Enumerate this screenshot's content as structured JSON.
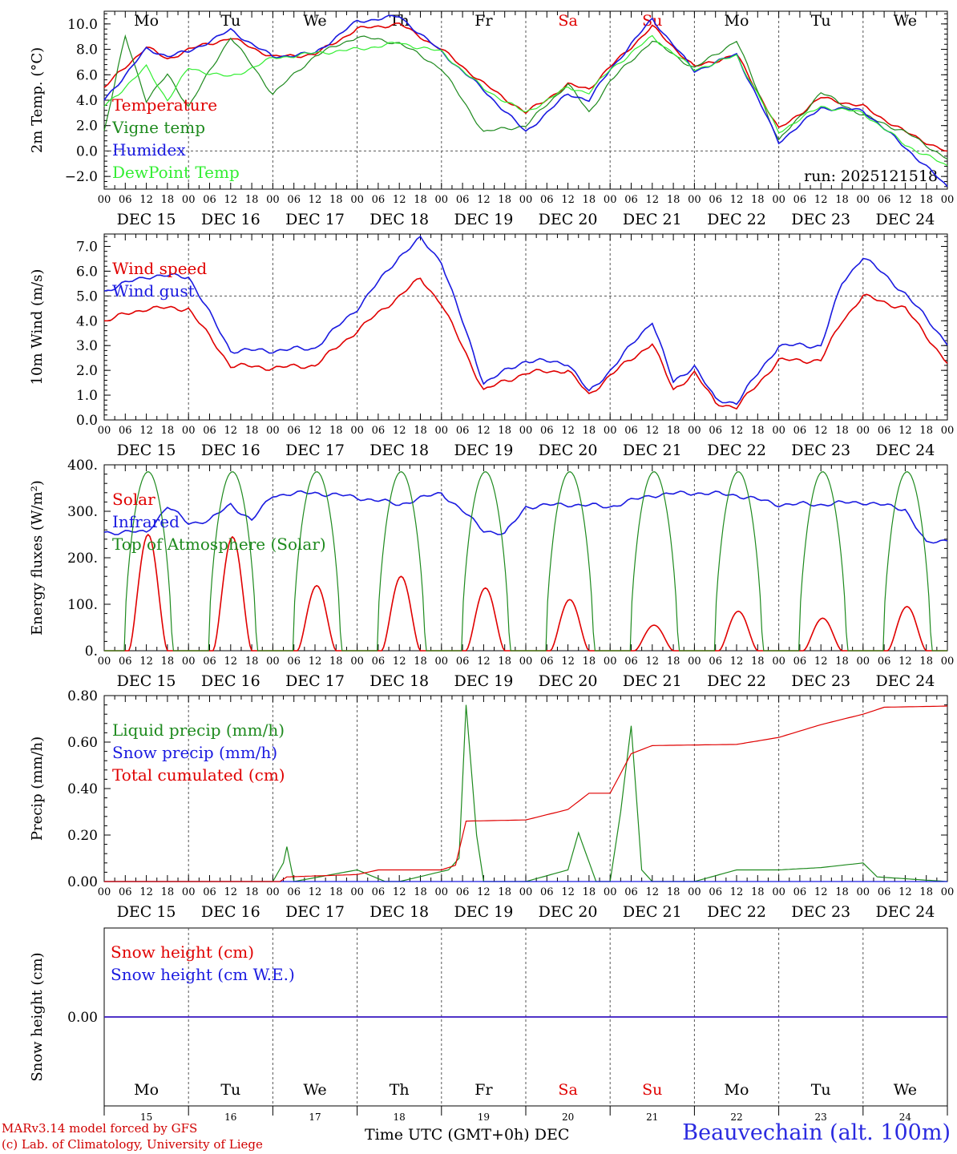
{
  "footer": {
    "credit_line1": "MARv3.14 model forced by GFS",
    "credit_line2": "(c) Lab. of Climatology, University of Liege",
    "time_label": "Time UTC (GMT+0h)",
    "month_label": "DEC",
    "station": "Beauvechain (alt. 100m)"
  },
  "colors": {
    "red": "#e00000",
    "dark_green": "#1e8a1e",
    "blue": "#1a1ae0",
    "light_green": "#32ee32",
    "weekend": "#e00000"
  },
  "chart_data": [
    {
      "type": "line",
      "panel": "temperature",
      "ylabel": "2m Temp. (°C)",
      "ylim": [
        -3.0,
        11.0
      ],
      "yticks": [
        "10.0",
        "8.0",
        "6.0",
        "4.0",
        "2.0",
        "0.0",
        "−2.0"
      ],
      "ytick_values": [
        10,
        8,
        6,
        4,
        2,
        0,
        -2
      ],
      "ref_line": 0,
      "run_label": "run: 2025121518",
      "weekdays": [
        "Mo",
        "Tu",
        "We",
        "Th",
        "Fr",
        "Sa",
        "Su",
        "Mo",
        "Tu",
        "We"
      ],
      "hour_ticks": [
        "00",
        "06",
        "12",
        "18"
      ],
      "end_tick": "00",
      "dates": [
        "DEC 15",
        "DEC 16",
        "DEC 17",
        "DEC 18",
        "DEC 19",
        "DEC 20",
        "DEC 21",
        "DEC 22",
        "DEC 23",
        "DEC 24"
      ],
      "x_unit": "hours since 2025-12-15 00 UTC",
      "series": [
        {
          "name": "Temperature",
          "color": "red",
          "x": [
            0,
            12,
            18,
            24,
            36,
            48,
            60,
            72,
            84,
            96,
            108,
            120,
            132,
            138,
            144,
            156,
            168,
            180,
            192,
            204,
            216,
            228,
            240
          ],
          "values": [
            5.0,
            8.2,
            7.2,
            8.0,
            8.9,
            7.4,
            7.6,
            9.6,
            10.0,
            8.0,
            5.3,
            3.0,
            5.2,
            4.9,
            6.6,
            9.8,
            6.6,
            7.6,
            1.7,
            4.2,
            3.5,
            1.5,
            -0.1
          ]
        },
        {
          "name": "Vigne temp",
          "color": "dark_green",
          "x": [
            0,
            6,
            12,
            18,
            24,
            36,
            48,
            60,
            72,
            84,
            96,
            108,
            120,
            132,
            138,
            144,
            156,
            168,
            180,
            192,
            204,
            216,
            228,
            240
          ],
          "values": [
            1.6,
            9.0,
            4.0,
            6.0,
            3.5,
            9.0,
            4.5,
            7.5,
            9.0,
            8.5,
            6.5,
            1.5,
            2.0,
            5.3,
            3.0,
            5.5,
            8.7,
            6.5,
            8.7,
            0.8,
            4.6,
            2.8,
            1.5,
            -0.6
          ]
        },
        {
          "name": "Humidex",
          "color": "blue",
          "x": [
            0,
            12,
            18,
            24,
            36,
            48,
            60,
            72,
            84,
            96,
            108,
            120,
            132,
            138,
            144,
            156,
            168,
            180,
            192,
            204,
            216,
            228,
            240
          ],
          "values": [
            4.0,
            8.0,
            7.5,
            7.8,
            9.5,
            7.4,
            7.7,
            10.2,
            10.6,
            7.8,
            4.8,
            1.5,
            4.5,
            4.0,
            6.4,
            10.4,
            6.3,
            7.6,
            0.7,
            3.4,
            3.2,
            0.3,
            -2.8
          ]
        },
        {
          "name": "DewPoint Temp",
          "color": "light_green",
          "x": [
            0,
            12,
            18,
            24,
            36,
            48,
            60,
            72,
            84,
            96,
            108,
            120,
            132,
            138,
            144,
            156,
            168,
            180,
            192,
            204,
            216,
            228,
            240
          ],
          "values": [
            3.5,
            6.6,
            4.0,
            6.5,
            5.8,
            7.3,
            7.7,
            8.0,
            8.5,
            7.8,
            4.9,
            3.0,
            5.0,
            4.6,
            6.4,
            9.0,
            6.4,
            7.5,
            1.5,
            3.5,
            3.0,
            0.5,
            -1.2
          ]
        }
      ]
    },
    {
      "type": "line",
      "panel": "wind",
      "ylabel": "10m Wind (m/s)",
      "ylim": [
        0.0,
        7.5
      ],
      "yticks": [
        "7.0",
        "6.0",
        "5.0",
        "4.0",
        "3.0",
        "2.0",
        "1.0",
        "0.0"
      ],
      "ytick_values": [
        7,
        6,
        5,
        4,
        3,
        2,
        1,
        0
      ],
      "ref_line": 5,
      "dates": [
        "DEC 15",
        "DEC 16",
        "DEC 17",
        "DEC 18",
        "DEC 19",
        "DEC 20",
        "DEC 21",
        "DEC 22",
        "DEC 23",
        "DEC 24"
      ],
      "hour_ticks": [
        "00",
        "06",
        "12",
        "18"
      ],
      "end_tick": "00",
      "series": [
        {
          "name": "Wind speed",
          "color": "red",
          "x": [
            0,
            12,
            24,
            36,
            48,
            60,
            72,
            84,
            90,
            96,
            108,
            120,
            132,
            138,
            144,
            156,
            162,
            168,
            174,
            180,
            192,
            204,
            210,
            216,
            228,
            240
          ],
          "values": [
            4.0,
            4.5,
            4.5,
            2.2,
            2.1,
            2.2,
            3.6,
            5.0,
            5.7,
            4.7,
            1.2,
            1.9,
            2.0,
            1.0,
            1.8,
            3.1,
            1.2,
            1.9,
            0.7,
            0.5,
            2.4,
            2.4,
            4.0,
            5.0,
            4.5,
            2.3
          ]
        },
        {
          "name": "Wind gust",
          "color": "blue",
          "x": [
            0,
            12,
            24,
            36,
            48,
            60,
            72,
            84,
            90,
            96,
            108,
            120,
            132,
            138,
            144,
            156,
            162,
            168,
            174,
            180,
            192,
            204,
            210,
            216,
            228,
            240
          ],
          "values": [
            5.2,
            5.8,
            5.8,
            2.8,
            2.8,
            2.9,
            4.5,
            6.6,
            7.3,
            6.4,
            1.5,
            2.4,
            2.3,
            1.1,
            2.0,
            4.0,
            1.5,
            2.2,
            0.8,
            0.7,
            3.0,
            3.0,
            5.5,
            6.6,
            5.1,
            3.1
          ]
        }
      ]
    },
    {
      "type": "line",
      "panel": "energy",
      "ylabel": "Energy fluxes (W/m²)",
      "ylim": [
        0,
        400
      ],
      "yticks": [
        "400.",
        "300.",
        "200.",
        "100.",
        "0."
      ],
      "ytick_values": [
        400,
        300,
        200,
        100,
        0
      ],
      "dates": [
        "DEC 15",
        "DEC 16",
        "DEC 17",
        "DEC 18",
        "DEC 19",
        "DEC 20",
        "DEC 21",
        "DEC 22",
        "DEC 23",
        "DEC 24"
      ],
      "hour_ticks": [
        "00",
        "06",
        "12",
        "18"
      ],
      "end_tick": "00",
      "daily_peaks": {
        "Solar": [
          250,
          245,
          140,
          160,
          135,
          110,
          55,
          85,
          70,
          95
        ],
        "Top of Atmosphere (Solar)": [
          385,
          385,
          385,
          385,
          385,
          385,
          385,
          385,
          385,
          385
        ]
      },
      "series": [
        {
          "name": "Solar",
          "color": "red"
        },
        {
          "name": "Infrared",
          "color": "blue",
          "x": [
            0,
            12,
            18,
            24,
            30,
            36,
            42,
            48,
            60,
            72,
            84,
            96,
            108,
            114,
            120,
            132,
            144,
            156,
            168,
            180,
            192,
            204,
            216,
            228,
            234,
            240
          ],
          "values": [
            255,
            255,
            310,
            275,
            280,
            315,
            280,
            335,
            340,
            330,
            315,
            340,
            260,
            250,
            310,
            315,
            310,
            335,
            340,
            335,
            315,
            315,
            320,
            305,
            230,
            240
          ]
        },
        {
          "name": "Top of Atmosphere (Solar)",
          "color": "dark_green"
        }
      ]
    },
    {
      "type": "line",
      "panel": "precip",
      "ylabel": "Precip (mm/h)",
      "ylim": [
        0.0,
        0.8
      ],
      "yticks": [
        "0.80",
        "0.60",
        "0.40",
        "0.20",
        "0.00"
      ],
      "ytick_values": [
        0.8,
        0.6,
        0.4,
        0.2,
        0.0
      ],
      "dates": [
        "DEC 15",
        "DEC 16",
        "DEC 17",
        "DEC 18",
        "DEC 19",
        "DEC 20",
        "DEC 21",
        "DEC 22",
        "DEC 23",
        "DEC 24"
      ],
      "hour_ticks": [
        "00",
        "06",
        "12",
        "18"
      ],
      "end_tick": "00",
      "series": [
        {
          "name": "Liquid precip (mm/h)",
          "color": "dark_green",
          "x": [
            0,
            48,
            51,
            52,
            54,
            72,
            80,
            84,
            98,
            101,
            103,
            106,
            108,
            120,
            132,
            135,
            140,
            144,
            147,
            150,
            153,
            156,
            168,
            180,
            192,
            204,
            216,
            220,
            240
          ],
          "values": [
            0,
            0,
            0.08,
            0.15,
            0,
            0.05,
            0,
            0,
            0.05,
            0.1,
            0.76,
            0.2,
            0,
            0,
            0.05,
            0.21,
            0,
            0,
            0.3,
            0.67,
            0.05,
            0,
            0,
            0.05,
            0.05,
            0.06,
            0.08,
            0.02,
            0
          ]
        },
        {
          "name": "Snow precip (mm/h)",
          "color": "blue",
          "x": [
            0,
            240
          ],
          "values": [
            0,
            0
          ]
        },
        {
          "name": "Total cumulated (cm)",
          "color": "red",
          "x": [
            0,
            50,
            52,
            72,
            78,
            96,
            100,
            103,
            120,
            132,
            138,
            144,
            150,
            156,
            180,
            192,
            204,
            216,
            222,
            240
          ],
          "values": [
            0,
            0,
            0.02,
            0.03,
            0.05,
            0.05,
            0.07,
            0.26,
            0.265,
            0.31,
            0.38,
            0.38,
            0.55,
            0.585,
            0.59,
            0.62,
            0.675,
            0.72,
            0.75,
            0.755
          ]
        }
      ]
    },
    {
      "type": "line",
      "panel": "snow",
      "ylabel": "Snow height (cm)",
      "ylim": [
        -1.0,
        1.0
      ],
      "yticks": [
        "0.00"
      ],
      "ytick_values": [
        0
      ],
      "weekdays": [
        "Mo",
        "Tu",
        "We",
        "Th",
        "Fr",
        "Sa",
        "Su",
        "Mo",
        "Tu",
        "We"
      ],
      "day_numbers": [
        "15",
        "16",
        "17",
        "18",
        "19",
        "20",
        "21",
        "22",
        "23",
        "24"
      ],
      "series": [
        {
          "name": "Snow height (cm)",
          "color": "red",
          "x": [
            0,
            240
          ],
          "values": [
            0,
            0
          ]
        },
        {
          "name": "Snow height (cm W.E.)",
          "color": "blue",
          "x": [
            0,
            240
          ],
          "values": [
            0,
            0
          ]
        }
      ]
    }
  ]
}
